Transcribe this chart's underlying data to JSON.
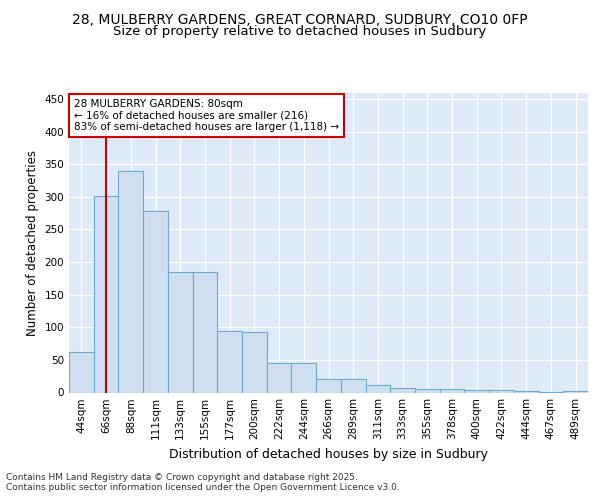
{
  "title_line1": "28, MULBERRY GARDENS, GREAT CORNARD, SUDBURY, CO10 0FP",
  "title_line2": "Size of property relative to detached houses in Sudbury",
  "xlabel": "Distribution of detached houses by size in Sudbury",
  "ylabel": "Number of detached properties",
  "categories": [
    "44sqm",
    "66sqm",
    "88sqm",
    "111sqm",
    "133sqm",
    "155sqm",
    "177sqm",
    "200sqm",
    "222sqm",
    "244sqm",
    "266sqm",
    "289sqm",
    "311sqm",
    "333sqm",
    "355sqm",
    "378sqm",
    "400sqm",
    "422sqm",
    "444sqm",
    "467sqm",
    "489sqm"
  ],
  "values": [
    62,
    302,
    340,
    278,
    185,
    185,
    94,
    93,
    45,
    45,
    21,
    21,
    11,
    7,
    6,
    6,
    4,
    4,
    3,
    1,
    3
  ],
  "bar_color": "#cfdff0",
  "bar_edge_color": "#6aaad4",
  "vline_x": 1.5,
  "vline_color": "#cc0000",
  "annotation_text": "28 MULBERRY GARDENS: 80sqm\n← 16% of detached houses are smaller (216)\n83% of semi-detached houses are larger (1,118) →",
  "annotation_box_color": "#ffffff",
  "annotation_box_edge": "#cc0000",
  "ylim": [
    0,
    460
  ],
  "yticks": [
    0,
    50,
    100,
    150,
    200,
    250,
    300,
    350,
    400,
    450
  ],
  "footer_text": "Contains HM Land Registry data © Crown copyright and database right 2025.\nContains public sector information licensed under the Open Government Licence v3.0.",
  "background_color": "#deeaf7",
  "title_fontsize": 10,
  "subtitle_fontsize": 9.5,
  "axis_label_fontsize": 8.5,
  "tick_fontsize": 7.5,
  "footer_fontsize": 6.5,
  "ann_fontsize": 7.5
}
